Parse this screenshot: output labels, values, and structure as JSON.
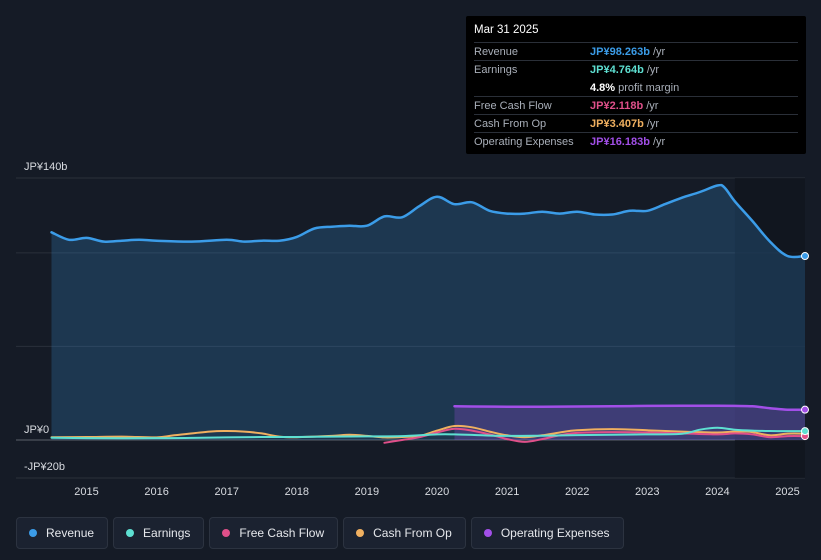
{
  "tooltip": {
    "date": "Mar 31 2025",
    "rows": [
      {
        "label": "Revenue",
        "value": "JP¥98.263b",
        "unit": "/yr",
        "color": "#3b9ce8"
      },
      {
        "label": "Earnings",
        "value": "JP¥4.764b",
        "unit": "/yr",
        "color": "#5ee0d2"
      },
      {
        "label": "",
        "value": "4.8%",
        "unit": "profit margin",
        "color": "#ffffff"
      },
      {
        "label": "Free Cash Flow",
        "value": "JP¥2.118b",
        "unit": "/yr",
        "color": "#e0508a"
      },
      {
        "label": "Cash From Op",
        "value": "JP¥3.407b",
        "unit": "/yr",
        "color": "#f0b060"
      },
      {
        "label": "Operating Expenses",
        "value": "JP¥16.183b",
        "unit": "/yr",
        "color": "#a24fe8"
      }
    ]
  },
  "legend": [
    {
      "label": "Revenue",
      "color": "#3b9ce8"
    },
    {
      "label": "Earnings",
      "color": "#5ee0d2"
    },
    {
      "label": "Free Cash Flow",
      "color": "#e0508a"
    },
    {
      "label": "Cash From Op",
      "color": "#f0b060"
    },
    {
      "label": "Operating Expenses",
      "color": "#a24fe8"
    }
  ],
  "chart_data": {
    "type": "area",
    "ylabel_top": "JP¥140b",
    "ylabel_zero": "JP¥0",
    "ylabel_bottom": "-JP¥20b",
    "ylim": [
      -20,
      140
    ],
    "xlim": [
      2014.45,
      2025.25
    ],
    "forecast_start": 2024.25,
    "x_ticks": [
      {
        "value": 2015,
        "label": "2015"
      },
      {
        "value": 2016,
        "label": "2016"
      },
      {
        "value": 2017,
        "label": "2017"
      },
      {
        "value": 2018,
        "label": "2018"
      },
      {
        "value": 2019,
        "label": "2019"
      },
      {
        "value": 2020,
        "label": "2020"
      },
      {
        "value": 2021,
        "label": "2021"
      },
      {
        "value": 2022,
        "label": "2022"
      },
      {
        "value": 2023,
        "label": "2023"
      },
      {
        "value": 2024,
        "label": "2024"
      },
      {
        "value": 2025,
        "label": "2025"
      }
    ],
    "series": [
      {
        "name": "Revenue",
        "color": "#3b9ce8",
        "fill": true,
        "x": [
          2014.5,
          2014.75,
          2015.0,
          2015.25,
          2015.5,
          2015.75,
          2016.0,
          2016.5,
          2017.0,
          2017.25,
          2017.5,
          2017.75,
          2018.0,
          2018.25,
          2018.5,
          2018.75,
          2019.0,
          2019.25,
          2019.5,
          2019.75,
          2020.0,
          2020.25,
          2020.5,
          2020.75,
          2021.0,
          2021.25,
          2021.5,
          2021.75,
          2022.0,
          2022.25,
          2022.5,
          2022.75,
          2023.0,
          2023.25,
          2023.5,
          2023.75,
          2024.0,
          2024.1,
          2024.25,
          2024.5,
          2024.75,
          2025.0,
          2025.25
        ],
        "values": [
          111,
          107,
          108,
          106,
          106.5,
          107,
          106.5,
          106,
          107,
          106,
          106.5,
          106.5,
          108.5,
          113,
          114,
          114.5,
          114.5,
          119.5,
          119,
          125,
          130,
          126,
          127,
          122.5,
          121,
          121,
          122,
          121,
          122,
          120.5,
          120.5,
          122.5,
          122.5,
          126,
          129.5,
          132.5,
          136,
          135,
          127.5,
          117,
          106,
          98.3,
          98.3
        ]
      },
      {
        "name": "Operating Expenses",
        "color": "#a24fe8",
        "fill": true,
        "x": [
          2020.25,
          2020.5,
          2021.0,
          2021.5,
          2022.0,
          2022.5,
          2023.0,
          2023.5,
          2024.0,
          2024.25,
          2024.5,
          2024.75,
          2025.0,
          2025.25
        ],
        "values": [
          18,
          17.9,
          17.8,
          17.8,
          17.9,
          18,
          18.2,
          18.3,
          18.3,
          18.2,
          18,
          17,
          16.2,
          16.2
        ]
      },
      {
        "name": "Cash From Op",
        "color": "#f0b060",
        "fill": false,
        "x": [
          2014.5,
          2015.0,
          2015.5,
          2016.0,
          2016.25,
          2016.75,
          2017.0,
          2017.25,
          2017.5,
          2017.75,
          2018.0,
          2018.5,
          2018.75,
          2019.0,
          2019.25,
          2019.5,
          2019.75,
          2020.0,
          2020.25,
          2020.5,
          2020.75,
          2021.0,
          2021.25,
          2021.5,
          2021.75,
          2022.0,
          2022.5,
          2023.0,
          2023.5,
          2024.0,
          2024.25,
          2024.5,
          2024.75,
          2025.0,
          2025.25
        ],
        "values": [
          1.5,
          1.6,
          1.8,
          1.4,
          2.5,
          4.5,
          4.8,
          4.5,
          3.5,
          1.8,
          1.5,
          2.2,
          2.8,
          2.2,
          1.4,
          1.6,
          2.2,
          5,
          7.5,
          6.8,
          4.5,
          2.5,
          1.5,
          2.5,
          4,
          5.2,
          5.8,
          5.2,
          4.5,
          4,
          4.5,
          4.2,
          2.5,
          3.4,
          3.4
        ]
      },
      {
        "name": "Free Cash Flow",
        "color": "#e0508a",
        "fill": false,
        "x": [
          2019.25,
          2019.5,
          2019.75,
          2020.0,
          2020.25,
          2020.5,
          2020.75,
          2021.0,
          2021.25,
          2021.5,
          2021.75,
          2022.0,
          2022.5,
          2023.0,
          2023.5,
          2024.0,
          2024.25,
          2024.5,
          2024.75,
          2025.0,
          2025.25
        ],
        "values": [
          -1.5,
          0,
          1.5,
          4,
          6,
          5,
          3,
          0.5,
          -1,
          0.5,
          2.5,
          3.8,
          4.2,
          4,
          3.5,
          3,
          3.5,
          3,
          1.5,
          2.1,
          2.1
        ]
      },
      {
        "name": "Earnings",
        "color": "#5ee0d2",
        "fill": false,
        "x": [
          2014.5,
          2015.0,
          2015.5,
          2016.0,
          2016.5,
          2017.0,
          2017.5,
          2018.0,
          2018.5,
          2019.0,
          2019.5,
          2020.0,
          2020.25,
          2020.5,
          2021.0,
          2021.5,
          2022.0,
          2022.5,
          2023.0,
          2023.5,
          2023.75,
          2024.0,
          2024.25,
          2024.5,
          2024.75,
          2025.0,
          2025.25
        ],
        "values": [
          1.2,
          1.0,
          0.9,
          1.0,
          1.1,
          1.4,
          1.6,
          1.6,
          1.8,
          1.9,
          2.1,
          3.0,
          3.0,
          2.7,
          2.2,
          2.3,
          2.6,
          2.8,
          3.0,
          3.3,
          5.5,
          6.5,
          5.5,
          5.0,
          4.8,
          4.76,
          4.76
        ]
      }
    ]
  }
}
